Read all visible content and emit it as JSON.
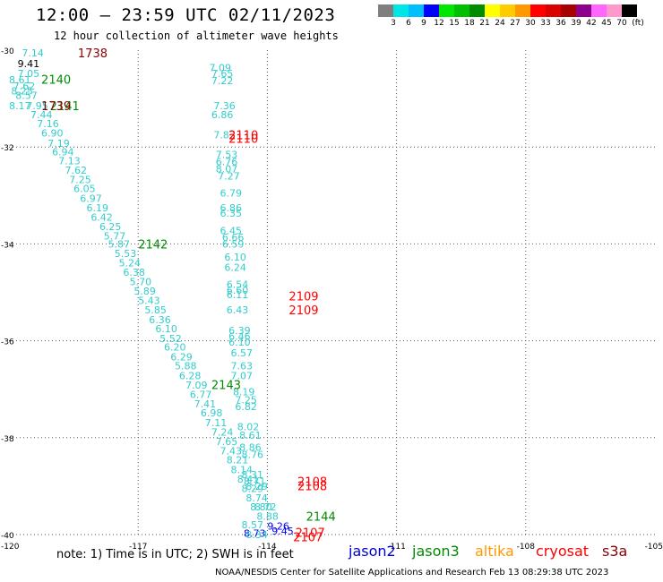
{
  "header": {
    "title": "12:00 – 23:59 UTC 02/11/2023",
    "subtitle": "12 hour collection of altimeter wave heights"
  },
  "legend": {
    "colors": [
      "#7f7f7f",
      "#00e5e5",
      "#00bfff",
      "#0000ff",
      "#00e600",
      "#00bf00",
      "#008c00",
      "#ffff00",
      "#ffcc00",
      "#ff9900",
      "#ff0000",
      "#d90000",
      "#a60000",
      "#8c008c",
      "#ff66ff",
      "#ff99cc",
      "#000000"
    ],
    "labels": [
      "3",
      "6",
      "9",
      "12",
      "15",
      "18",
      "21",
      "24",
      "27",
      "30",
      "33",
      "36",
      "39",
      "42",
      "45",
      "70",
      "(ft)"
    ]
  },
  "chart_data": {
    "type": "scatter",
    "title": "12:00 – 23:59 UTC 02/11/2023",
    "subtitle": "12 hour collection of altimeter wave heights",
    "x_ticks": [
      "-120",
      "-117",
      "-114",
      "-111",
      "-108",
      "-105"
    ],
    "y_ticks": [
      "-30",
      "-32",
      "-34",
      "-36",
      "-38",
      "-40"
    ],
    "xlim": [
      -120,
      -105
    ],
    "ylim": [
      -40,
      -30
    ],
    "grid": true,
    "swh_points": [
      {
        "lon": -119.7,
        "lat": -30.06,
        "label": "7.14",
        "color": "#33cccc"
      },
      {
        "lon": -119.8,
        "lat": -30.28,
        "label": "9.41",
        "color": "#000000"
      },
      {
        "lon": -119.8,
        "lat": -30.48,
        "label": "7.05",
        "color": "#33cccc"
      },
      {
        "lon": -120.0,
        "lat": -30.61,
        "label": "8.61",
        "color": "#33cccc"
      },
      {
        "lon": -119.9,
        "lat": -30.74,
        "label": "7.62",
        "color": "#33cccc"
      },
      {
        "lon": -119.95,
        "lat": -30.84,
        "label": "8.25",
        "color": "#33cccc"
      },
      {
        "lon": -119.85,
        "lat": -30.93,
        "label": "8.57",
        "color": "#33cccc"
      },
      {
        "lon": -120.0,
        "lat": -31.15,
        "label": "8.17",
        "color": "#33cccc"
      },
      {
        "lon": -119.6,
        "lat": -31.15,
        "label": "7.95",
        "color": "#33cccc"
      },
      {
        "lon": -119.5,
        "lat": -31.33,
        "label": "7.44",
        "color": "#33cccc"
      },
      {
        "lon": -119.35,
        "lat": -31.52,
        "label": "7.16",
        "color": "#33cccc"
      },
      {
        "lon": -119.25,
        "lat": -31.71,
        "label": "6.90",
        "color": "#33cccc"
      },
      {
        "lon": -119.1,
        "lat": -31.92,
        "label": "7.19",
        "color": "#33cccc"
      },
      {
        "lon": -119.0,
        "lat": -32.1,
        "label": "6.94",
        "color": "#33cccc"
      },
      {
        "lon": -118.85,
        "lat": -32.28,
        "label": "7.13",
        "color": "#33cccc"
      },
      {
        "lon": -118.7,
        "lat": -32.48,
        "label": "7.62",
        "color": "#33cccc"
      },
      {
        "lon": -118.6,
        "lat": -32.67,
        "label": "7.25",
        "color": "#33cccc"
      },
      {
        "lon": -118.5,
        "lat": -32.86,
        "label": "6.05",
        "color": "#33cccc"
      },
      {
        "lon": -118.35,
        "lat": -33.06,
        "label": "6.97",
        "color": "#33cccc"
      },
      {
        "lon": -118.2,
        "lat": -33.25,
        "label": "6.19",
        "color": "#33cccc"
      },
      {
        "lon": -118.1,
        "lat": -33.45,
        "label": "6.42",
        "color": "#33cccc"
      },
      {
        "lon": -117.9,
        "lat": -33.64,
        "label": "6.25",
        "color": "#33cccc"
      },
      {
        "lon": -117.8,
        "lat": -33.84,
        "label": "5.77",
        "color": "#33cccc"
      },
      {
        "lon": -117.7,
        "lat": -34.0,
        "label": "5.87",
        "color": "#33cccc"
      },
      {
        "lon": -117.55,
        "lat": -34.2,
        "label": "5.53",
        "color": "#33cccc"
      },
      {
        "lon": -117.45,
        "lat": -34.39,
        "label": "5.24",
        "color": "#33cccc"
      },
      {
        "lon": -117.35,
        "lat": -34.58,
        "label": "6.38",
        "color": "#33cccc"
      },
      {
        "lon": -117.2,
        "lat": -34.78,
        "label": "5.70",
        "color": "#33cccc"
      },
      {
        "lon": -117.1,
        "lat": -34.97,
        "label": "5.89",
        "color": "#33cccc"
      },
      {
        "lon": -117.0,
        "lat": -35.17,
        "label": "5.43",
        "color": "#33cccc"
      },
      {
        "lon": -116.85,
        "lat": -35.36,
        "label": "5.85",
        "color": "#33cccc"
      },
      {
        "lon": -116.75,
        "lat": -35.56,
        "label": "6.36",
        "color": "#33cccc"
      },
      {
        "lon": -116.6,
        "lat": -35.75,
        "label": "6.10",
        "color": "#33cccc"
      },
      {
        "lon": -116.5,
        "lat": -35.95,
        "label": "5.52",
        "color": "#33cccc"
      },
      {
        "lon": -116.4,
        "lat": -36.13,
        "label": "6.20",
        "color": "#33cccc"
      },
      {
        "lon": -116.25,
        "lat": -36.33,
        "label": "6.29",
        "color": "#33cccc"
      },
      {
        "lon": -116.15,
        "lat": -36.52,
        "label": "5.88",
        "color": "#33cccc"
      },
      {
        "lon": -116.05,
        "lat": -36.72,
        "label": "6.28",
        "color": "#33cccc"
      },
      {
        "lon": -115.9,
        "lat": -36.91,
        "label": "7.09",
        "color": "#33cccc"
      },
      {
        "lon": -115.8,
        "lat": -37.11,
        "label": "6.77",
        "color": "#33cccc"
      },
      {
        "lon": -115.7,
        "lat": -37.3,
        "label": "7.41",
        "color": "#33cccc"
      },
      {
        "lon": -115.55,
        "lat": -37.49,
        "label": "6.98",
        "color": "#33cccc"
      },
      {
        "lon": -115.45,
        "lat": -37.69,
        "label": "7.11",
        "color": "#33cccc"
      },
      {
        "lon": -115.3,
        "lat": -37.88,
        "label": "7.24",
        "color": "#33cccc"
      },
      {
        "lon": -115.2,
        "lat": -38.08,
        "label": "7.65",
        "color": "#33cccc"
      },
      {
        "lon": -115.1,
        "lat": -38.27,
        "label": "7.43",
        "color": "#33cccc"
      },
      {
        "lon": -114.95,
        "lat": -38.46,
        "label": "8.21",
        "color": "#33cccc"
      },
      {
        "lon": -114.85,
        "lat": -38.66,
        "label": "8.14",
        "color": "#33cccc"
      },
      {
        "lon": -114.7,
        "lat": -38.85,
        "label": "8.41",
        "color": "#33cccc"
      },
      {
        "lon": -114.6,
        "lat": -39.05,
        "label": "8.29",
        "color": "#33cccc"
      },
      {
        "lon": -114.5,
        "lat": -39.24,
        "label": "8.74",
        "color": "#33cccc"
      },
      {
        "lon": -114.4,
        "lat": -39.43,
        "label": "8.80",
        "color": "#33cccc"
      },
      {
        "lon": -114.25,
        "lat": -39.62,
        "label": "8.88",
        "color": "#33cccc"
      },
      {
        "lon": -114.6,
        "lat": -39.8,
        "label": "8.57",
        "color": "#33cccc"
      },
      {
        "lon": -114.55,
        "lat": -39.97,
        "label": "8.73",
        "color": "#0000ff"
      },
      {
        "lon": -114.5,
        "lat": -40.0,
        "label": "8.34",
        "color": "#33cccc"
      },
      {
        "lon": -114.0,
        "lat": -39.82,
        "label": "9.26",
        "color": "#0000ff"
      },
      {
        "lon": -113.9,
        "lat": -39.93,
        "label": "9.45",
        "color": "#0000ff"
      },
      {
        "lon": -115.35,
        "lat": -30.36,
        "label": "7.09",
        "color": "#33cccc"
      },
      {
        "lon": -115.3,
        "lat": -30.48,
        "label": "7.65",
        "color": "#33cccc"
      },
      {
        "lon": -115.3,
        "lat": -30.63,
        "label": "7.22",
        "color": "#33cccc"
      },
      {
        "lon": -115.25,
        "lat": -31.15,
        "label": "7.36",
        "color": "#33cccc"
      },
      {
        "lon": -115.3,
        "lat": -31.33,
        "label": "6.86",
        "color": "#33cccc"
      },
      {
        "lon": -115.25,
        "lat": -31.75,
        "label": "7.83",
        "color": "#33cccc"
      },
      {
        "lon": -115.2,
        "lat": -32.15,
        "label": "7.53",
        "color": "#33cccc"
      },
      {
        "lon": -115.2,
        "lat": -32.3,
        "label": "6.76",
        "color": "#33cccc"
      },
      {
        "lon": -115.2,
        "lat": -32.45,
        "label": "8.07",
        "color": "#33cccc"
      },
      {
        "lon": -115.15,
        "lat": -32.6,
        "label": "7.27",
        "color": "#33cccc"
      },
      {
        "lon": -115.1,
        "lat": -32.95,
        "label": "6.79",
        "color": "#33cccc"
      },
      {
        "lon": -115.1,
        "lat": -33.25,
        "label": "6.86",
        "color": "#33cccc"
      },
      {
        "lon": -115.1,
        "lat": -33.36,
        "label": "6.35",
        "color": "#33cccc"
      },
      {
        "lon": -115.1,
        "lat": -33.72,
        "label": "6.45",
        "color": "#33cccc"
      },
      {
        "lon": -115.05,
        "lat": -33.86,
        "label": "6.66",
        "color": "#33cccc"
      },
      {
        "lon": -115.05,
        "lat": -34.0,
        "label": "6.59",
        "color": "#33cccc"
      },
      {
        "lon": -115.0,
        "lat": -34.27,
        "label": "6.10",
        "color": "#33cccc"
      },
      {
        "lon": -115.0,
        "lat": -34.48,
        "label": "6.24",
        "color": "#33cccc"
      },
      {
        "lon": -114.95,
        "lat": -34.83,
        "label": "6.54",
        "color": "#33cccc"
      },
      {
        "lon": -114.95,
        "lat": -34.95,
        "label": "6.60",
        "color": "#33cccc"
      },
      {
        "lon": -114.95,
        "lat": -35.05,
        "label": "6.11",
        "color": "#33cccc"
      },
      {
        "lon": -114.95,
        "lat": -35.36,
        "label": "6.43",
        "color": "#33cccc"
      },
      {
        "lon": -114.9,
        "lat": -35.79,
        "label": "6.39",
        "color": "#33cccc"
      },
      {
        "lon": -114.9,
        "lat": -35.91,
        "label": "6.46",
        "color": "#33cccc"
      },
      {
        "lon": -114.9,
        "lat": -36.03,
        "label": "6.10",
        "color": "#33cccc"
      },
      {
        "lon": -114.85,
        "lat": -36.25,
        "label": "6.57",
        "color": "#33cccc"
      },
      {
        "lon": -114.85,
        "lat": -36.52,
        "label": "7.63",
        "color": "#33cccc"
      },
      {
        "lon": -114.85,
        "lat": -36.72,
        "label": "7.07",
        "color": "#33cccc"
      },
      {
        "lon": -114.8,
        "lat": -37.05,
        "label": "8.19",
        "color": "#33cccc"
      },
      {
        "lon": -114.75,
        "lat": -37.22,
        "label": "7.25",
        "color": "#33cccc"
      },
      {
        "lon": -114.75,
        "lat": -37.36,
        "label": "6.82",
        "color": "#33cccc"
      },
      {
        "lon": -114.7,
        "lat": -37.77,
        "label": "8.02",
        "color": "#33cccc"
      },
      {
        "lon": -114.65,
        "lat": -37.95,
        "label": "8.61",
        "color": "#33cccc"
      },
      {
        "lon": -114.65,
        "lat": -38.2,
        "label": "8.86",
        "color": "#33cccc"
      },
      {
        "lon": -114.6,
        "lat": -38.35,
        "label": "8.76",
        "color": "#33cccc"
      },
      {
        "lon": -114.6,
        "lat": -38.76,
        "label": "8.31",
        "color": "#33cccc"
      },
      {
        "lon": -114.55,
        "lat": -38.9,
        "label": "8.71",
        "color": "#33cccc"
      },
      {
        "lon": -114.5,
        "lat": -39.0,
        "label": "8.29",
        "color": "#33cccc"
      },
      {
        "lon": -114.3,
        "lat": -39.43,
        "label": "8.72",
        "color": "#33cccc"
      }
    ],
    "pass_labels": [
      {
        "lon": -118.4,
        "lat": -30.06,
        "label": "1738",
        "color": "#8b0000"
      },
      {
        "lon": -119.25,
        "lat": -30.6,
        "label": "2140",
        "color": "#008c00"
      },
      {
        "lon": -119.05,
        "lat": -31.15,
        "label": "2141",
        "color": "#008c00"
      },
      {
        "lon": -119.25,
        "lat": -31.15,
        "label": "1739",
        "color": "#8b0000"
      },
      {
        "lon": -117.0,
        "lat": -34.0,
        "label": "2142",
        "color": "#008c00"
      },
      {
        "lon": -114.9,
        "lat": -31.75,
        "label": "2110",
        "color": "#ff0000"
      },
      {
        "lon": -114.9,
        "lat": -31.82,
        "label": "2110",
        "color": "#ff0000"
      },
      {
        "lon": -113.5,
        "lat": -35.07,
        "label": "2109",
        "color": "#ff0000"
      },
      {
        "lon": -113.5,
        "lat": -35.36,
        "label": "2109",
        "color": "#ff0000"
      },
      {
        "lon": -115.3,
        "lat": -36.9,
        "label": "2143",
        "color": "#008c00"
      },
      {
        "lon": -113.3,
        "lat": -38.9,
        "label": "2108",
        "color": "#ff0000"
      },
      {
        "lon": -113.3,
        "lat": -38.99,
        "label": "2108",
        "color": "#ff0000"
      },
      {
        "lon": -113.1,
        "lat": -39.62,
        "label": "2144",
        "color": "#008c00"
      },
      {
        "lon": -113.35,
        "lat": -39.95,
        "label": "2107",
        "color": "#ff0000"
      },
      {
        "lon": -113.4,
        "lat": -40.05,
        "label": "2107",
        "color": "#ff0000"
      }
    ]
  },
  "footer": {
    "note": "note: 1) Time is in UTC; 2) SWH is in feet",
    "satellites": [
      {
        "name": "jason2",
        "color": "#0000cc"
      },
      {
        "name": "jason3",
        "color": "#008c00"
      },
      {
        "name": "altika",
        "color": "#ff9900"
      },
      {
        "name": "cryosat",
        "color": "#ff0000"
      },
      {
        "name": "s3a",
        "color": "#8b0000"
      }
    ],
    "credit": "NOAA/NESDIS Center for Satellite Applications and Research   Feb 13 08:29:38 UTC 2023"
  }
}
